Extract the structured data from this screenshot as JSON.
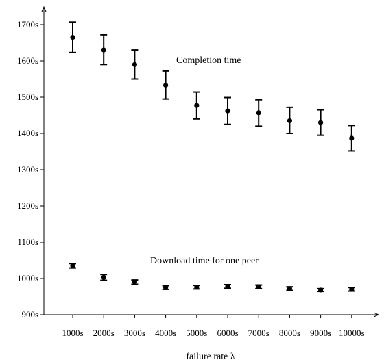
{
  "chart_data": {
    "type": "scatter",
    "title": "",
    "xlabel": "failure rate λ",
    "ylabel": "",
    "categories": [
      "1000s",
      "2000s",
      "3000s",
      "4000s",
      "5000s",
      "6000s",
      "7000s",
      "8000s",
      "9000s",
      "10000s"
    ],
    "ylim": [
      900,
      1700
    ],
    "yticks": [
      "900s",
      "1000s",
      "1100s",
      "1200s",
      "1300s",
      "1400s",
      "1500s",
      "1600s",
      "1700s"
    ],
    "grid": false,
    "legend": "none",
    "series": [
      {
        "name": "Completion time",
        "values": [
          1665,
          1630,
          1590,
          1533,
          1477,
          1462,
          1457,
          1435,
          1430,
          1387
        ],
        "error_low": [
          1623,
          1590,
          1550,
          1495,
          1440,
          1425,
          1420,
          1400,
          1395,
          1352
        ],
        "error_high": [
          1707,
          1672,
          1630,
          1572,
          1514,
          1499,
          1493,
          1472,
          1465,
          1422
        ]
      },
      {
        "name": "Download time for one peer",
        "values": [
          1035,
          1003,
          990,
          975,
          976,
          978,
          977,
          972,
          968,
          970
        ],
        "error_low": [
          1029,
          995,
          984,
          970,
          971,
          973,
          972,
          967,
          964,
          965
        ],
        "error_high": [
          1041,
          1011,
          996,
          980,
          981,
          983,
          982,
          977,
          972,
          975
        ]
      }
    ],
    "colors": {
      "ink": "#000000"
    }
  }
}
